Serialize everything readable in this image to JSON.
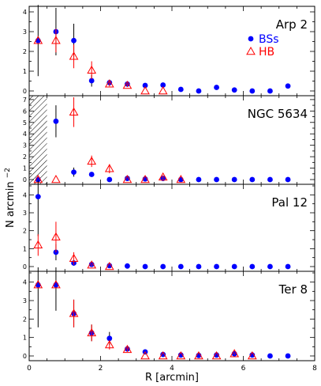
{
  "figure": {
    "ylabel": "N arcmin",
    "ylabel_sup": "−2",
    "xlabel": "R [arcmin]",
    "x_ticks": [
      "0",
      "2",
      "4",
      "6",
      "8"
    ],
    "colors": {
      "bss": "#0000ff",
      "hb": "#ff0000",
      "frame": "#000000"
    }
  },
  "chart_data": [
    {
      "type": "scatter",
      "title": "Arp 2",
      "xlim": [
        0,
        8
      ],
      "ylim": [
        0,
        4.2
      ],
      "y_ticks": [
        "0",
        "1",
        "2",
        "3",
        "4"
      ],
      "legend": {
        "placement": "top-right",
        "entries": [
          "BSs",
          "HB"
        ]
      },
      "series": [
        {
          "name": "BSs",
          "marker": "filled-circle",
          "x": [
            0.25,
            0.75,
            1.25,
            1.75,
            2.25,
            2.75,
            3.25,
            3.75,
            4.25,
            4.75,
            5.25,
            5.75,
            6.25,
            6.75,
            7.25
          ],
          "y": [
            2.55,
            3.0,
            2.55,
            0.52,
            0.42,
            0.35,
            0.28,
            0.3,
            0.08,
            0.0,
            0.18,
            0.05,
            0.0,
            0.0,
            0.25
          ],
          "err": [
            1.8,
            1.2,
            0.85,
            0.3,
            0.15,
            0.1,
            0.1,
            0.1,
            0.05,
            0.0,
            0.05,
            0.03,
            0.0,
            0.0,
            0.08
          ]
        },
        {
          "name": "HB",
          "marker": "open-triangle",
          "x": [
            0.25,
            0.75,
            1.25,
            1.75,
            2.25,
            2.75,
            3.25,
            3.75
          ],
          "y": [
            2.55,
            2.55,
            1.75,
            1.05,
            0.35,
            0.28,
            0.0,
            0.0
          ],
          "err": [
            0.0,
            0.6,
            0.6,
            0.45,
            0.12,
            0.08,
            0.0,
            0.0
          ]
        }
      ]
    },
    {
      "type": "scatter",
      "title": "NGC 5634",
      "xlim": [
        0,
        8
      ],
      "ylim": [
        0,
        7.2
      ],
      "y_ticks": [
        "0",
        "1",
        "2",
        "3",
        "4",
        "5",
        "6",
        "7"
      ],
      "hatched_region": {
        "x_from": 0,
        "x_to": 0.5
      },
      "series": [
        {
          "name": "BSs",
          "marker": "filled-circle",
          "x": [
            0.25,
            0.75,
            1.25,
            1.75,
            2.25,
            2.75,
            3.25,
            3.75,
            4.25,
            4.75,
            5.25,
            5.75,
            6.25,
            6.75,
            7.25
          ],
          "y": [
            0.0,
            5.1,
            0.65,
            0.45,
            0.0,
            0.1,
            0.05,
            0.1,
            0.0,
            0.0,
            0.0,
            0.0,
            0.0,
            0.0,
            0.0
          ],
          "err": [
            0.0,
            1.4,
            0.4,
            0.2,
            0.0,
            0.05,
            0.05,
            0.05,
            0.0,
            0.0,
            0.0,
            0.0,
            0.0,
            0.0,
            0.0
          ]
        },
        {
          "name": "HB",
          "marker": "open-triangle",
          "x": [
            0.25,
            0.75,
            1.25,
            1.75,
            2.25,
            2.75,
            3.25,
            3.75,
            4.25
          ],
          "y": [
            0.0,
            0.0,
            5.9,
            1.6,
            0.95,
            0.0,
            0.0,
            0.22,
            0.0
          ],
          "err": [
            0.0,
            0.0,
            1.3,
            0.5,
            0.4,
            0.0,
            0.0,
            0.15,
            0.0
          ]
        }
      ]
    },
    {
      "type": "scatter",
      "title": "Pal 12",
      "xlim": [
        0,
        8
      ],
      "ylim": [
        0,
        4.5
      ],
      "y_ticks": [
        "0",
        "1",
        "2",
        "3",
        "4"
      ],
      "series": [
        {
          "name": "BSs",
          "marker": "filled-circle",
          "x": [
            0.25,
            0.75,
            1.25,
            1.75,
            2.25,
            2.75,
            3.25,
            3.75,
            4.25,
            4.75,
            5.25,
            5.75,
            6.25,
            6.75,
            7.25
          ],
          "y": [
            3.9,
            0.8,
            0.2,
            0.12,
            0.05,
            0.03,
            0.0,
            0.0,
            0.0,
            0.0,
            0.0,
            0.0,
            0.0,
            0.0,
            0.0
          ],
          "err": [
            2.2,
            0.45,
            0.15,
            0.08,
            0.03,
            0.02,
            0.0,
            0.0,
            0.0,
            0.0,
            0.0,
            0.0,
            0.0,
            0.0,
            0.0
          ]
        },
        {
          "name": "HB",
          "marker": "open-triangle",
          "x": [
            0.25,
            0.75,
            1.25,
            1.75,
            2.25
          ],
          "y": [
            1.2,
            1.65,
            0.45,
            0.08,
            0.0
          ],
          "err": [
            0.6,
            0.85,
            0.35,
            0.05,
            0.0
          ]
        }
      ]
    },
    {
      "type": "scatter",
      "title": "Ter 8",
      "xlim": [
        0,
        8
      ],
      "ylim": [
        0,
        4.5
      ],
      "y_ticks": [
        "0",
        "1",
        "2",
        "3",
        "4"
      ],
      "series": [
        {
          "name": "BSs",
          "marker": "filled-circle",
          "x": [
            0.25,
            0.75,
            1.25,
            1.75,
            2.25,
            2.75,
            3.25,
            3.75,
            4.25,
            4.75,
            5.25,
            5.75,
            6.25,
            6.75,
            7.25
          ],
          "y": [
            3.85,
            3.85,
            2.3,
            1.25,
            0.95,
            0.38,
            0.22,
            0.08,
            0.05,
            0.03,
            0.05,
            0.12,
            0.05,
            0.0,
            0.0
          ],
          "err": [
            2.3,
            1.4,
            0.75,
            0.45,
            0.35,
            0.15,
            0.1,
            0.05,
            0.03,
            0.02,
            0.03,
            0.06,
            0.03,
            0.0,
            0.0
          ]
        },
        {
          "name": "HB",
          "marker": "open-triangle",
          "x": [
            0.25,
            0.75,
            1.25,
            1.75,
            2.25,
            2.75,
            3.25,
            3.75,
            4.25,
            4.75,
            5.25,
            5.75,
            6.25
          ],
          "y": [
            3.85,
            3.85,
            2.3,
            1.25,
            0.6,
            0.35,
            0.0,
            0.0,
            0.0,
            0.0,
            0.0,
            0.12,
            0.0
          ],
          "err": [
            0.0,
            0.0,
            0.75,
            0.45,
            0.25,
            0.12,
            0.0,
            0.0,
            0.0,
            0.0,
            0.0,
            0.05,
            0.0
          ]
        }
      ]
    }
  ]
}
